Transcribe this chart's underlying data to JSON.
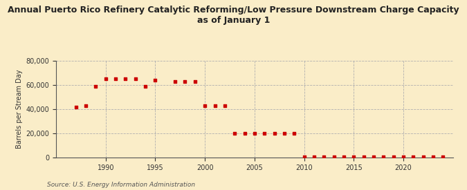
{
  "title_line1": "Annual Puerto Rico Refinery Catalytic Reforming/Low Pressure Downstream Charge Capacity",
  "title_line2": "as of January 1",
  "ylabel": "Barrels per Stream Day",
  "source": "Source: U.S. Energy Information Administration",
  "background_color": "#faedc8",
  "dot_color": "#cc0000",
  "years": [
    1987,
    1988,
    1989,
    1990,
    1991,
    1992,
    1993,
    1994,
    1995,
    1997,
    1998,
    1999,
    2000,
    2001,
    2002,
    2003,
    2004,
    2005,
    2006,
    2007,
    2008,
    2009,
    2010,
    2011,
    2012,
    2013,
    2014,
    2015,
    2016,
    2017,
    2018,
    2019,
    2020,
    2021,
    2022,
    2023,
    2024
  ],
  "values": [
    42000,
    43000,
    59000,
    65000,
    65000,
    65000,
    65000,
    59000,
    64000,
    63000,
    63000,
    63000,
    43000,
    43000,
    43000,
    20000,
    20000,
    20000,
    20000,
    20000,
    20000,
    20000,
    500,
    500,
    500,
    500,
    500,
    500,
    500,
    500,
    500,
    500,
    500,
    500,
    500,
    500,
    500
  ],
  "ylim": [
    0,
    80000
  ],
  "yticks": [
    0,
    20000,
    40000,
    60000,
    80000
  ],
  "xlim": [
    1985,
    2025
  ],
  "xticks": [
    1990,
    1995,
    2000,
    2005,
    2010,
    2015,
    2020
  ],
  "title_fontsize": 9,
  "ylabel_fontsize": 7,
  "tick_fontsize": 7,
  "source_fontsize": 6.5,
  "dot_size": 10
}
